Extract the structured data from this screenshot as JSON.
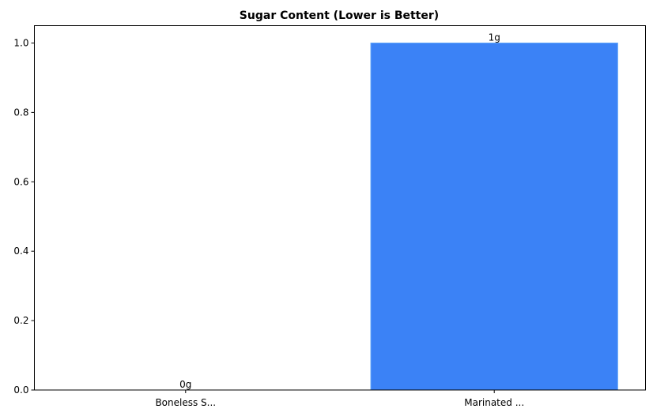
{
  "chart_data": {
    "type": "bar",
    "title": "Sugar Content (Lower is Better)",
    "xlabel": "",
    "ylabel": "",
    "categories": [
      "Boneless S...",
      "Marinated ..."
    ],
    "values": [
      0,
      1
    ],
    "data_labels": [
      "0g",
      "1g"
    ],
    "ylim": [
      0,
      1.05
    ],
    "yticks": [
      0.0,
      0.2,
      0.4,
      0.6,
      0.8,
      1.0
    ],
    "ytick_labels": [
      "0.0",
      "0.2",
      "0.4",
      "0.6",
      "0.8",
      "1.0"
    ],
    "grid": false,
    "bar_color": "#3b82f6",
    "bar_edge_color": "#60a5fa"
  }
}
